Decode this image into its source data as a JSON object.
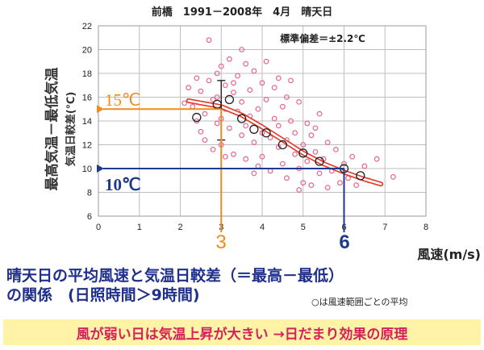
{
  "chart_data": {
    "type": "scatter",
    "title": "前橋　1991－2008年　4月　晴天日",
    "xlabel": "風速(m/s)",
    "ylabel": "最高気温－最低気温",
    "ylabel_sub": "気温日較差(℃)",
    "xlim": [
      0,
      8
    ],
    "ylim": [
      6,
      22
    ],
    "x_ticks": [
      "0",
      "1",
      "2",
      "3",
      "4",
      "5",
      "6",
      "7",
      "8"
    ],
    "y_ticks": [
      "6",
      "8",
      "10",
      "12",
      "14",
      "16",
      "18",
      "20",
      "22"
    ],
    "grid": true,
    "std_label": "標準偏差＝±2.2℃",
    "scatter_points": [
      [
        2.1,
        15.5
      ],
      [
        2.2,
        16.8
      ],
      [
        2.3,
        15.2
      ],
      [
        2.4,
        14.0
      ],
      [
        2.5,
        13.1
      ],
      [
        2.5,
        16.5
      ],
      [
        2.6,
        12.4
      ],
      [
        2.6,
        14.6
      ],
      [
        2.7,
        20.8
      ],
      [
        2.7,
        17.4
      ],
      [
        2.8,
        15.8
      ],
      [
        2.8,
        11.6
      ],
      [
        2.9,
        13.8
      ],
      [
        2.9,
        16.0
      ],
      [
        3.0,
        18.6
      ],
      [
        3.0,
        14.2
      ],
      [
        3.0,
        12.0
      ],
      [
        3.1,
        17.0
      ],
      [
        3.1,
        15.0
      ],
      [
        3.2,
        13.4
      ],
      [
        3.2,
        19.2
      ],
      [
        3.3,
        16.4
      ],
      [
        3.3,
        11.2
      ],
      [
        3.4,
        14.8
      ],
      [
        3.4,
        17.8
      ],
      [
        3.5,
        12.8
      ],
      [
        3.5,
        15.6
      ],
      [
        3.5,
        20.0
      ],
      [
        3.6,
        13.6
      ],
      [
        3.6,
        10.8
      ],
      [
        3.7,
        16.6
      ],
      [
        3.7,
        14.4
      ],
      [
        3.8,
        18.2
      ],
      [
        3.8,
        12.2
      ],
      [
        3.9,
        15.0
      ],
      [
        3.9,
        10.2
      ],
      [
        4.0,
        17.2
      ],
      [
        4.0,
        13.0
      ],
      [
        4.0,
        11.0
      ],
      [
        4.1,
        15.8
      ],
      [
        4.1,
        19.0
      ],
      [
        4.2,
        12.6
      ],
      [
        4.2,
        9.8
      ],
      [
        4.3,
        14.2
      ],
      [
        4.3,
        16.8
      ],
      [
        4.4,
        11.8
      ],
      [
        4.4,
        13.6
      ],
      [
        4.5,
        10.4
      ],
      [
        4.5,
        15.2
      ],
      [
        4.6,
        12.4
      ],
      [
        4.6,
        9.2
      ],
      [
        4.7,
        14.0
      ],
      [
        4.7,
        17.4
      ],
      [
        4.8,
        11.2
      ],
      [
        4.8,
        13.0
      ],
      [
        4.9,
        10.0
      ],
      [
        4.9,
        15.6
      ],
      [
        5.0,
        12.0
      ],
      [
        5.0,
        8.8
      ],
      [
        5.1,
        13.8
      ],
      [
        5.1,
        10.6
      ],
      [
        5.2,
        12.8
      ],
      [
        5.2,
        8.6
      ],
      [
        5.3,
        11.4
      ],
      [
        5.4,
        9.6
      ],
      [
        5.4,
        14.6
      ],
      [
        5.5,
        10.8
      ],
      [
        5.6,
        12.2
      ],
      [
        5.6,
        8.4
      ],
      [
        5.7,
        9.8
      ],
      [
        5.8,
        11.6
      ],
      [
        5.9,
        8.8
      ],
      [
        6.0,
        10.4
      ],
      [
        6.1,
        9.2
      ],
      [
        6.2,
        11.0
      ],
      [
        6.3,
        8.6
      ],
      [
        6.5,
        10.2
      ],
      [
        6.6,
        9.0
      ],
      [
        6.8,
        10.8
      ],
      [
        7.2,
        9.3
      ],
      [
        2.4,
        17.6
      ],
      [
        2.9,
        18.0
      ],
      [
        3.3,
        17.2
      ],
      [
        3.6,
        18.8
      ],
      [
        4.4,
        17.6
      ],
      [
        3.1,
        11.0
      ],
      [
        3.8,
        9.6
      ],
      [
        4.6,
        16.0
      ],
      [
        5.3,
        13.4
      ],
      [
        4.9,
        8.2
      ]
    ],
    "average_points": [
      [
        2.4,
        14.3
      ],
      [
        2.9,
        15.4
      ],
      [
        3.2,
        15.8
      ],
      [
        3.5,
        14.2
      ],
      [
        3.8,
        13.3
      ],
      [
        4.1,
        13.0
      ],
      [
        4.5,
        12.0
      ],
      [
        5.0,
        11.3
      ],
      [
        5.4,
        10.6
      ],
      [
        6.0,
        10.0
      ],
      [
        6.4,
        9.4
      ]
    ],
    "fit_curve": [
      [
        2.2,
        15.7
      ],
      [
        3.0,
        15.2
      ],
      [
        3.5,
        14.5
      ],
      [
        4.0,
        13.5
      ],
      [
        4.5,
        12.4
      ],
      [
        5.0,
        11.3
      ],
      [
        5.5,
        10.4
      ],
      [
        6.0,
        9.7
      ],
      [
        6.5,
        9.1
      ],
      [
        6.9,
        8.7
      ]
    ],
    "error_bar": {
      "x": 3.0,
      "y": 15.0,
      "low": 12.4,
      "high": 17.4
    },
    "annotations": [
      {
        "text": "15℃",
        "y": 15,
        "x": 3,
        "color": "#f08a1e"
      },
      {
        "text": "10℃",
        "y": 10,
        "x": 6,
        "color": "#1e3a8a"
      }
    ],
    "marker_labels": [
      {
        "text": "3",
        "color": "#f08a1e"
      },
      {
        "text": "6",
        "color": "#1e3a8a"
      }
    ],
    "colors": {
      "points": "#e8668f",
      "fit": "#e33d2d",
      "orange": "#f08a1e",
      "blue": "#1e3a8a"
    }
  },
  "caption": {
    "line1": "晴天日の平均風速と気温日較差（＝最高－最低）",
    "line2": "の関係　(日照時間＞9時間)",
    "note": "○は風速範囲ごとの平均"
  },
  "banner": "風が弱い日は気温上昇が大きい →日だまり効果の原理"
}
